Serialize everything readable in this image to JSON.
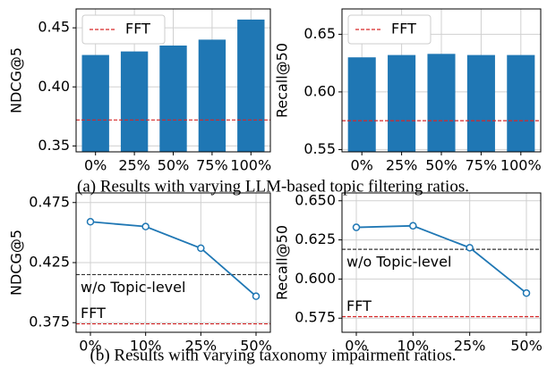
{
  "chart_data": [
    {
      "type": "bar",
      "ylabel": "NDCG@5",
      "categories": [
        "0%",
        "25%",
        "50%",
        "75%",
        "100%"
      ],
      "values": [
        0.427,
        0.43,
        0.435,
        0.44,
        0.457
      ],
      "color": "#1f77b4",
      "ylim": [
        0.345,
        0.466
      ],
      "yticks": [
        0.35,
        {
          "value": 0.4,
          "label": "0.40"
        },
        0.45
      ],
      "grid": true,
      "legend": "upper left",
      "reference_lines": [
        {
          "label": "FFT",
          "value": 0.372,
          "color": "#d62728"
        }
      ]
    },
    {
      "type": "bar",
      "ylabel": "Recall@50",
      "categories": [
        "0%",
        "25%",
        "50%",
        "75%",
        "100%"
      ],
      "values": [
        0.63,
        0.632,
        0.633,
        0.632,
        0.632
      ],
      "color": "#1f77b4",
      "ylim": [
        0.548,
        0.672
      ],
      "yticks": [
        0.55,
        {
          "value": 0.6,
          "label": "0.60"
        },
        0.65
      ],
      "grid": true,
      "legend": "upper left",
      "reference_lines": [
        {
          "label": "FFT",
          "value": 0.575,
          "color": "#d62728"
        }
      ]
    },
    {
      "type": "line",
      "ylabel": "NDCG@5",
      "categories": [
        "0%",
        "10%",
        "25%",
        "50%"
      ],
      "values": [
        0.459,
        0.455,
        0.437,
        0.397
      ],
      "color": "#1f77b4",
      "ylim": [
        0.367,
        0.483
      ],
      "yticks": [
        0.375,
        0.425,
        0.475
      ],
      "grid": true,
      "reference_lines": [
        {
          "label": "w/o Topic-level",
          "value": 0.415,
          "color": "#333333"
        },
        {
          "label": "FFT",
          "value": 0.374,
          "color": "#d62728"
        }
      ]
    },
    {
      "type": "line",
      "ylabel": "Recall@50",
      "categories": [
        "0%",
        "10%",
        "25%",
        "50%"
      ],
      "values": [
        0.633,
        0.634,
        0.62,
        0.591
      ],
      "color": "#1f77b4",
      "ylim": [
        0.566,
        0.655
      ],
      "yticks": [
        0.575,
        {
          "value": 0.6,
          "label": "0.600"
        },
        0.625,
        {
          "value": 0.65,
          "label": "0.650"
        }
      ],
      "grid": true,
      "reference_lines": [
        {
          "label": "w/o Topic-level",
          "value": 0.619,
          "color": "#333333"
        },
        {
          "label": "FFT",
          "value": 0.576,
          "color": "#d62728"
        }
      ]
    }
  ],
  "captions": [
    "(a) Results with varying LLM-based topic filtering ratios.",
    "(b) Results with varying taxonomy impairment ratios."
  ]
}
